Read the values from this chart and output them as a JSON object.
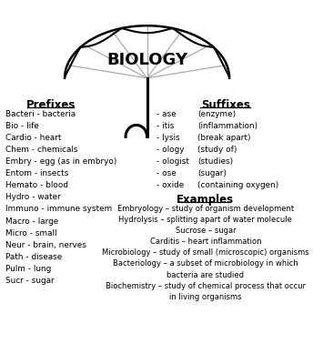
{
  "title": "BIOLOGY",
  "background_color": "#ffffff",
  "prefixes_title": "Prefixes",
  "prefixes": [
    "Bacteri - bacteria",
    "Bio - life",
    "Cardio - heart",
    "Chem - chemicals",
    "Embry - egg (as in embryo)",
    "Entom - insects",
    "Hemato - blood",
    "Hydro - water",
    "Immuno - immune system",
    "Macro - large",
    "Micro - small",
    "Neur - brain, nerves",
    "Path - disease",
    "Pulm - lung",
    "Sucr - sugar"
  ],
  "suffixes_title": "Suffixes",
  "suffixes_left": [
    "- ase",
    "- itis",
    "- lysis",
    "- ology",
    "- ologist",
    "- ose",
    "- oxide"
  ],
  "suffixes_right": [
    "(enzyme)",
    "(inflammation)",
    "(break apart)",
    "(study of)",
    "(studies)",
    "(sugar)",
    "(containing oxygen)"
  ],
  "examples_title": "Examples",
  "examples": [
    "Embryology – study of organism development",
    "Hydrolysis – splitting apart of water molecule",
    "Sucrose – sugar",
    "Carditis – heart inflammation",
    "Microbiology – study of small (microscopic) organisms",
    "Bacteriology – a subset of microbiology in which",
    "bacteria are studied",
    "Biochemistry – study of chemical process that occur",
    "in living organisms"
  ],
  "text_color": "#000000",
  "umbrella_color": "#000000",
  "rib_color": "#aaaaaa",
  "handle_color": "#888888"
}
